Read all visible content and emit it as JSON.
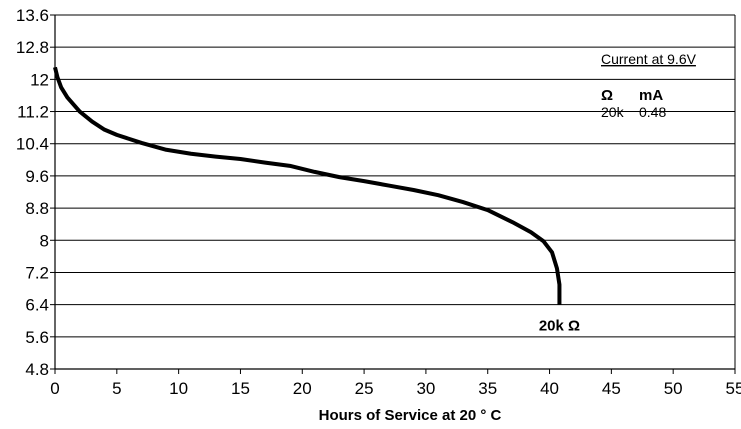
{
  "chart_data": {
    "type": "line",
    "title": "",
    "xlabel": "Hours of Service at 20 ° C",
    "ylabel": "",
    "xlim": [
      0,
      55
    ],
    "ylim": [
      4.8,
      13.6
    ],
    "x_ticks": [
      0,
      5,
      10,
      15,
      20,
      25,
      30,
      35,
      40,
      45,
      50,
      55
    ],
    "y_ticks": [
      4.8,
      5.6,
      6.4,
      7.2,
      8,
      8.8,
      9.6,
      10.4,
      11.2,
      12,
      12.8,
      13.6
    ],
    "x_tick_labels": [
      "0",
      "5",
      "10",
      "15",
      "20",
      "25",
      "30",
      "35",
      "40",
      "45",
      "50",
      "55"
    ],
    "y_tick_labels": [
      "4.8",
      "5.6",
      "6.4",
      "7.2",
      "8",
      "8.8",
      "9.6",
      "10.4",
      "11.2",
      "12",
      "12.8",
      "13.6"
    ],
    "grid": "horizontal",
    "legend": {
      "title": "Current at 9.6V",
      "col1_header": "Ω",
      "col2_header": "mA",
      "col1_value": "20k",
      "col2_value": "0.48",
      "placement": "top-right"
    },
    "series": [
      {
        "label": "20k Ω",
        "color": "#000000",
        "points": [
          [
            0,
            12.3
          ],
          [
            0.2,
            12.05
          ],
          [
            0.5,
            11.8
          ],
          [
            1,
            11.55
          ],
          [
            2,
            11.2
          ],
          [
            3,
            10.95
          ],
          [
            4,
            10.75
          ],
          [
            5,
            10.62
          ],
          [
            7,
            10.42
          ],
          [
            9,
            10.25
          ],
          [
            11,
            10.15
          ],
          [
            13,
            10.08
          ],
          [
            15,
            10.02
          ],
          [
            17,
            9.93
          ],
          [
            19,
            9.85
          ],
          [
            21,
            9.7
          ],
          [
            23,
            9.57
          ],
          [
            25,
            9.47
          ],
          [
            27,
            9.36
          ],
          [
            29,
            9.25
          ],
          [
            31,
            9.12
          ],
          [
            33,
            8.95
          ],
          [
            35,
            8.75
          ],
          [
            37,
            8.45
          ],
          [
            38.5,
            8.2
          ],
          [
            39.5,
            7.98
          ],
          [
            40.2,
            7.7
          ],
          [
            40.6,
            7.3
          ],
          [
            40.8,
            6.9
          ],
          [
            40.8,
            6.4
          ]
        ]
      }
    ]
  }
}
